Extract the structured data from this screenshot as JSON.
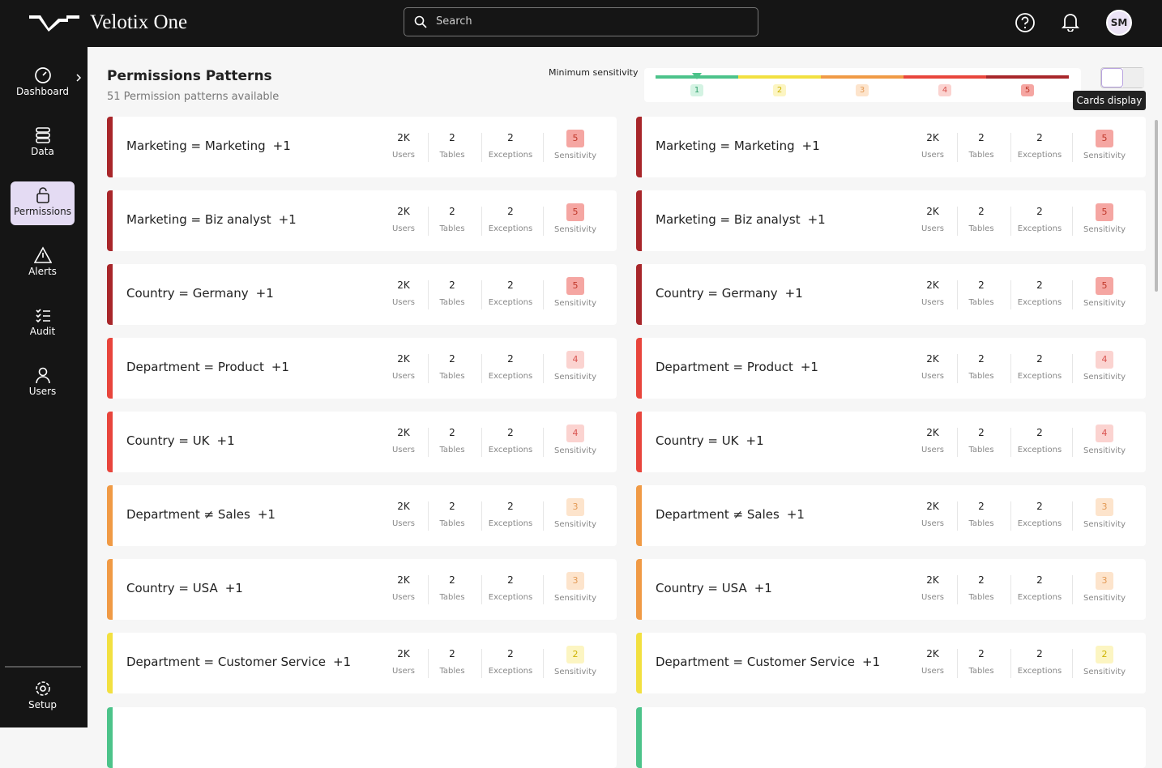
{
  "header": {
    "brand": "Velotix One",
    "search_placeholder": "Search",
    "avatar": "SM"
  },
  "nav": {
    "items": [
      "Dashboard",
      "Data",
      "Permissions",
      "Alerts",
      "Audit",
      "Users"
    ],
    "setup": "Setup"
  },
  "page": {
    "title": "Permissions Patterns",
    "subtitle": "51 Permission patterns available"
  },
  "sensitivity_filter": {
    "label": "Minimum sensitivity",
    "levels": [
      1,
      2,
      3,
      4,
      5
    ]
  },
  "tooltip": "Cards display",
  "stat_labels": {
    "users": "Users",
    "tables": "Tables",
    "exceptions": "Exceptions",
    "sensitivity": "Sensitivity"
  },
  "columns": [
    {
      "cards": [
        {
          "pattern": "Marketing = Marketing",
          "extra": "+1",
          "users": "2K",
          "tables": 2,
          "exceptions": 2,
          "sensitivity": 5
        },
        {
          "pattern": "Marketing = Biz analyst",
          "extra": "+1",
          "users": "2K",
          "tables": 2,
          "exceptions": 2,
          "sensitivity": 5
        },
        {
          "pattern": "Country = Germany",
          "extra": "+1",
          "users": "2K",
          "tables": 2,
          "exceptions": 2,
          "sensitivity": 5
        },
        {
          "pattern": "Department = Product",
          "extra": "+1",
          "users": "2K",
          "tables": 2,
          "exceptions": 2,
          "sensitivity": 4
        },
        {
          "pattern": "Country = UK",
          "extra": "+1",
          "users": "2K",
          "tables": 2,
          "exceptions": 2,
          "sensitivity": 4
        },
        {
          "pattern": "Department ≠ Sales",
          "extra": "+1",
          "users": "2K",
          "tables": 2,
          "exceptions": 2,
          "sensitivity": 3
        },
        {
          "pattern": "Country = USA",
          "extra": "+1",
          "users": "2K",
          "tables": 2,
          "exceptions": 2,
          "sensitivity": 3
        },
        {
          "pattern": "Department = Customer Service",
          "extra": "+1",
          "users": "2K",
          "tables": 2,
          "exceptions": 2,
          "sensitivity": 2
        }
      ]
    },
    {
      "cards": [
        {
          "pattern": "Marketing = Marketing",
          "extra": "+1",
          "users": "2K",
          "tables": 2,
          "exceptions": 2,
          "sensitivity": 5
        },
        {
          "pattern": "Marketing = Biz analyst",
          "extra": "+1",
          "users": "2K",
          "tables": 2,
          "exceptions": 2,
          "sensitivity": 5
        },
        {
          "pattern": "Country = Germany",
          "extra": "+1",
          "users": "2K",
          "tables": 2,
          "exceptions": 2,
          "sensitivity": 5
        },
        {
          "pattern": "Department = Product",
          "extra": "+1",
          "users": "2K",
          "tables": 2,
          "exceptions": 2,
          "sensitivity": 4
        },
        {
          "pattern": "Country = UK",
          "extra": "+1",
          "users": "2K",
          "tables": 2,
          "exceptions": 2,
          "sensitivity": 4
        },
        {
          "pattern": "Department ≠ Sales",
          "extra": "+1",
          "users": "2K",
          "tables": 2,
          "exceptions": 2,
          "sensitivity": 3
        },
        {
          "pattern": "Country = USA",
          "extra": "+1",
          "users": "2K",
          "tables": 2,
          "exceptions": 2,
          "sensitivity": 3
        },
        {
          "pattern": "Department = Customer Service",
          "extra": "+1",
          "users": "2K",
          "tables": 2,
          "exceptions": 2,
          "sensitivity": 2
        }
      ]
    }
  ]
}
